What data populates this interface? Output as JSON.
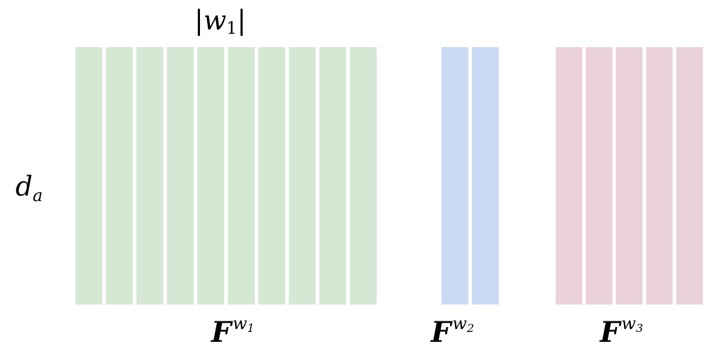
{
  "width_label": {
    "bars": "|",
    "var": "w",
    "subscript": "1"
  },
  "dim_label": {
    "var": "d",
    "subscript": "a"
  },
  "groups": [
    {
      "script": "F",
      "sup_var": "w",
      "sup_sub": "1",
      "columns": 10,
      "color": "#d5e8d4"
    },
    {
      "script": "F",
      "sup_var": "w",
      "sup_sub": "2",
      "columns": 2,
      "color": "#c9daf4"
    },
    {
      "script": "F",
      "sup_var": "w",
      "sup_sub": "3",
      "columns": 5,
      "color": "#ead1dc"
    }
  ]
}
